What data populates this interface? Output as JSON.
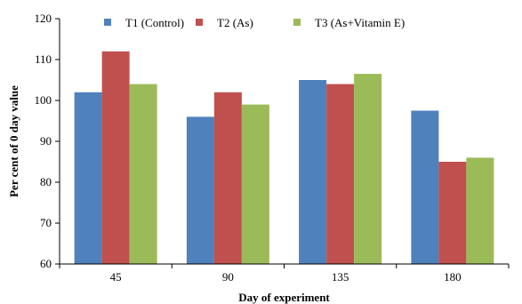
{
  "chart_data": {
    "type": "bar",
    "title": "",
    "xlabel": "Day of experiment",
    "ylabel": "Per cent of 0 day value",
    "categories": [
      "45",
      "90",
      "135",
      "180"
    ],
    "ylim": [
      60,
      120
    ],
    "yticks": [
      60,
      70,
      80,
      90,
      100,
      110,
      120
    ],
    "grid": false,
    "legend_position": "top",
    "series": [
      {
        "name": "T1 (Control)",
        "color": "#4F81BD",
        "values": [
          102,
          96,
          105,
          97.5
        ]
      },
      {
        "name": "T2 (As)",
        "color": "#C0504D",
        "values": [
          112,
          102,
          104,
          85
        ]
      },
      {
        "name": "T3 (As+Vitamin E)",
        "color": "#9BBB59",
        "values": [
          104,
          99,
          106.5,
          86
        ]
      }
    ]
  }
}
